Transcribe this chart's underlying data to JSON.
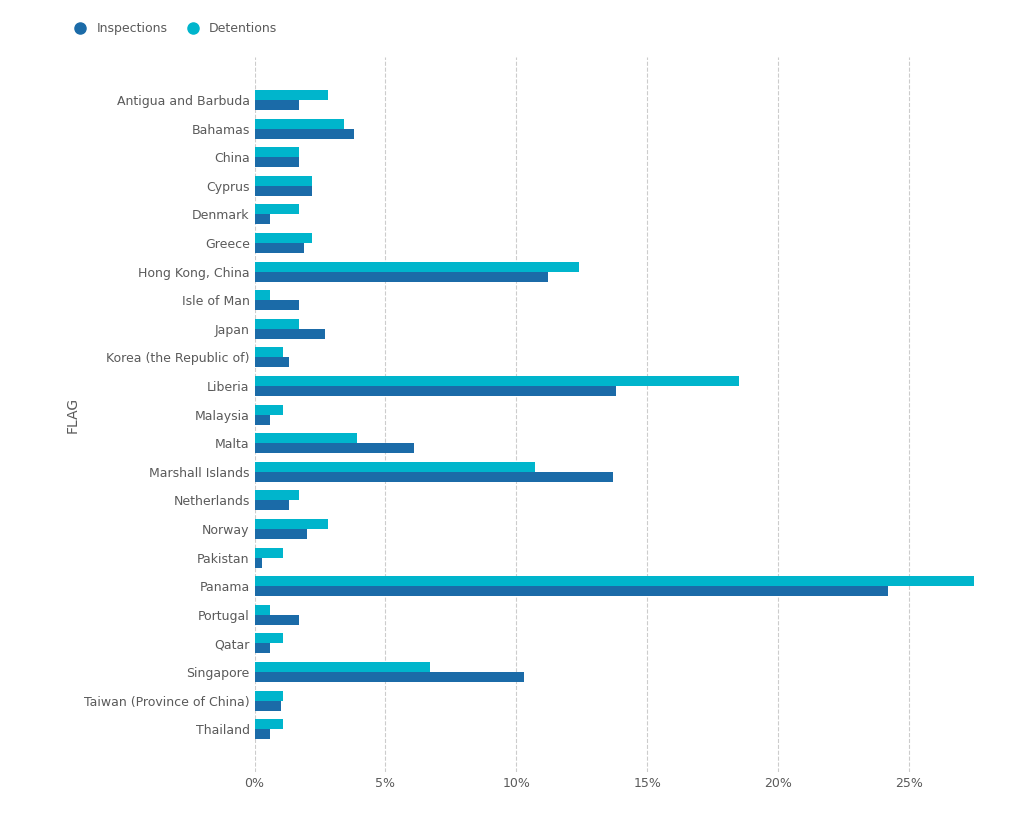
{
  "countries": [
    "Antigua and Barbuda",
    "Bahamas",
    "China",
    "Cyprus",
    "Denmark",
    "Greece",
    "Hong Kong, China",
    "Isle of Man",
    "Japan",
    "Korea (the Republic of)",
    "Liberia",
    "Malaysia",
    "Malta",
    "Marshall Islands",
    "Netherlands",
    "Norway",
    "Pakistan",
    "Panama",
    "Portugal",
    "Qatar",
    "Singapore",
    "Taiwan (Province of China)",
    "Thailand"
  ],
  "inspections": [
    1.7,
    3.8,
    1.7,
    2.2,
    0.6,
    1.9,
    11.2,
    1.7,
    2.7,
    1.3,
    13.8,
    0.6,
    6.1,
    13.7,
    1.3,
    2.0,
    0.3,
    24.2,
    1.7,
    0.6,
    10.3,
    1.0,
    0.6
  ],
  "detentions": [
    2.8,
    3.4,
    1.7,
    2.2,
    1.7,
    2.2,
    12.4,
    0.6,
    1.7,
    1.1,
    18.5,
    1.1,
    3.9,
    10.7,
    1.7,
    2.8,
    1.1,
    27.5,
    0.6,
    1.1,
    6.7,
    1.1,
    1.1
  ],
  "inspection_color": "#1B6BA8",
  "detention_color": "#00B5CC",
  "background_color": "#ffffff",
  "ylabel": "FLAG",
  "xlim_max": 28,
  "bar_height": 0.35,
  "grid_color": "#cccccc",
  "label_color": "#5a5a5a",
  "legend_insp_color": "#1B6BA8",
  "legend_det_color": "#00B5CC"
}
